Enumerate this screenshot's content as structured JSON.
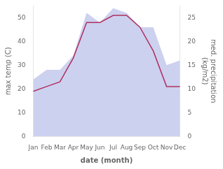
{
  "chart_data": {
    "type": "line",
    "categories": [
      "Jan",
      "Feb",
      "Mar",
      "Apr",
      "May",
      "Jun",
      "Jul",
      "Aug",
      "Sep",
      "Oct",
      "Nov",
      "Dec"
    ],
    "series": [
      {
        "type": "area",
        "axis": "y2",
        "color": "#b0b8e8",
        "values": [
          12,
          14,
          14,
          17,
          26,
          24,
          27,
          26,
          23,
          23,
          15,
          16
        ]
      },
      {
        "type": "line",
        "color": "#b03060",
        "values": [
          19,
          21,
          23,
          33,
          48,
          48,
          51,
          51,
          46,
          36,
          21,
          21
        ]
      }
    ],
    "xlabel": "date (month)",
    "ylabel": "max temp (C)",
    "y2label": "med. precipitation\n(kg/m2)",
    "ylim": [
      0,
      55
    ],
    "yticks": [
      0,
      10,
      20,
      30,
      40,
      50
    ],
    "y2lim": [
      0,
      27.5
    ],
    "y2ticks": [
      0,
      5,
      10,
      15,
      20,
      25
    ],
    "grid": false
  }
}
